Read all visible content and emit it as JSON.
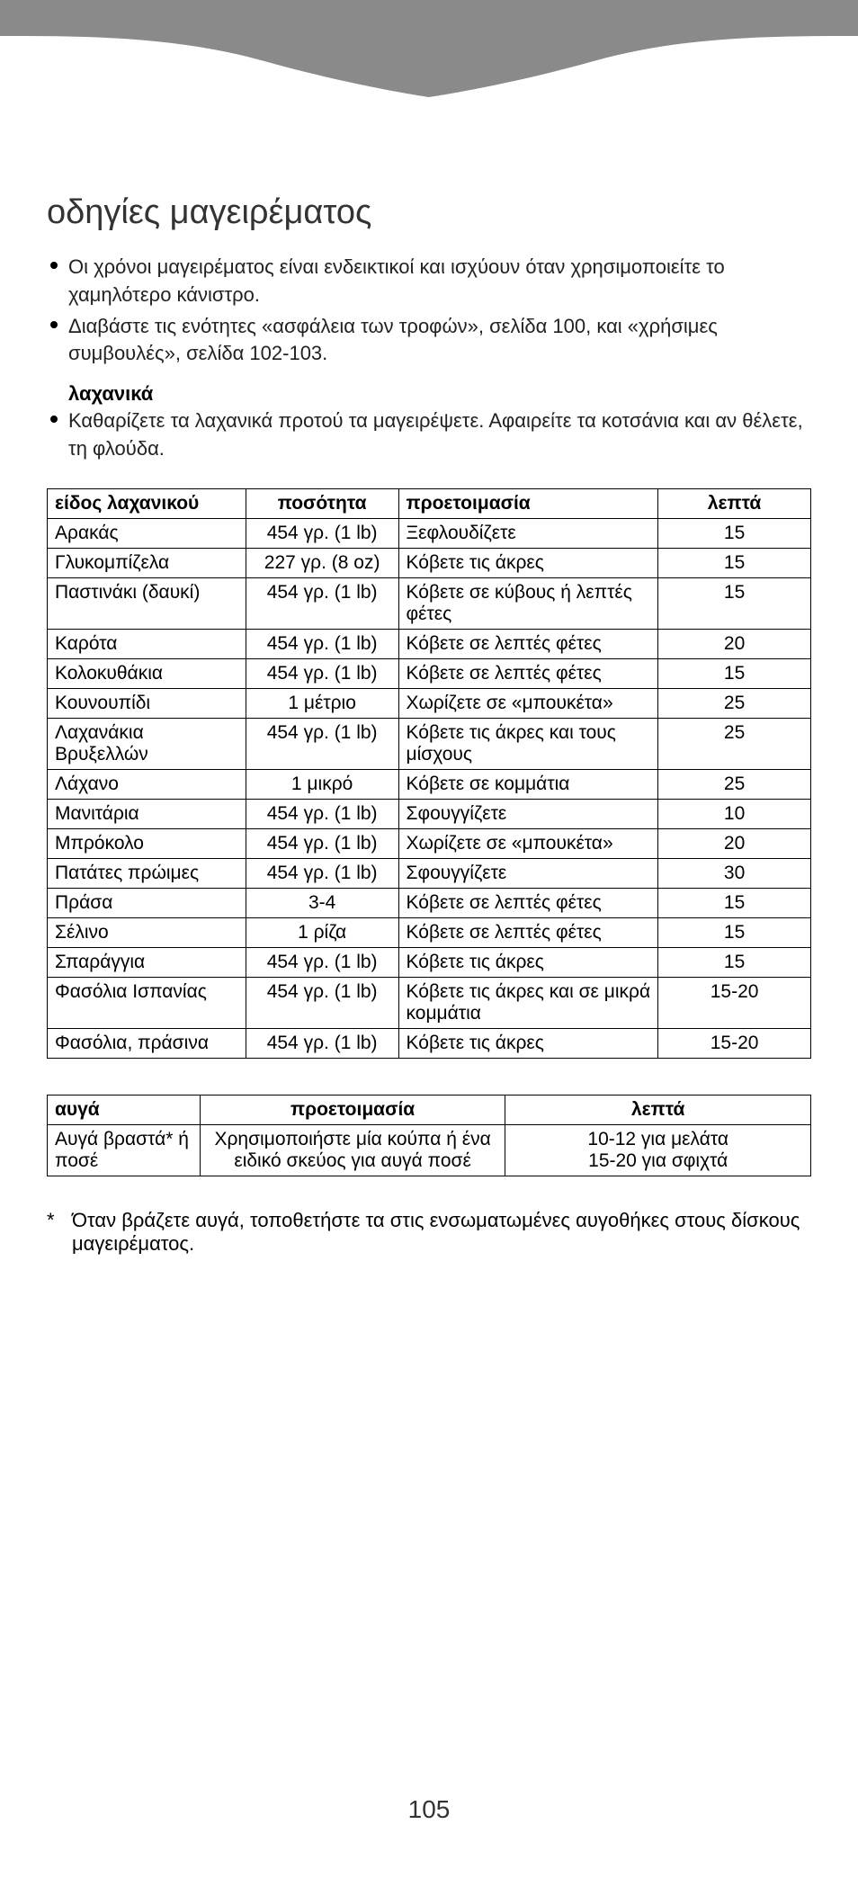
{
  "heading": "οδηγίες μαγειρέματος",
  "bullets": [
    "Οι χρόνοι μαγειρέματος είναι ενδεικτικοί και ισχύουν όταν χρησιμοποιείτε το χαμηλότερο κάνιστρο.",
    "Διαβάστε τις ενότητες «ασφάλεια των τροφών», σελίδα 100, και «χρήσιμες συμβουλές», σελίδα 102-103."
  ],
  "veg_section_label": "λαχανικά",
  "veg_bullet": "Καθαρίζετε τα λαχανικά προτού τα μαγειρέψετε. Αφαιρείτε τα κοτσάνια και αν θέλετε, τη φλούδα.",
  "veg_table": {
    "headers": [
      "είδος λαχανικού",
      "ποσότητα",
      "προετοιμασία",
      "λεπτά"
    ],
    "col_widths": [
      "26%",
      "20%",
      "34%",
      "20%"
    ],
    "rows": [
      [
        "Αρακάς",
        "454 γρ. (1 lb)",
        "Ξεφλουδίζετε",
        "15"
      ],
      [
        "Γλυκομπίζελα",
        "227 γρ. (8 oz)",
        "Κόβετε τις άκρες",
        "15"
      ],
      [
        "Παστινάκι (δαυκί)",
        "454 γρ. (1 lb)",
        "Κόβετε σε κύβους ή λεπτές φέτες",
        "15"
      ],
      [
        "Καρότα",
        "454 γρ. (1 lb)",
        "Κόβετε σε λεπτές φέτες",
        "20"
      ],
      [
        "Κολοκυθάκια",
        "454 γρ. (1 lb)",
        "Κόβετε σε λεπτές φέτες",
        "15"
      ],
      [
        "Κουνουπίδι",
        "1 μέτριο",
        "Χωρίζετε σε «μπουκέτα»",
        "25"
      ],
      [
        "Λαχανάκια Βρυξελλών",
        "454 γρ. (1 lb)",
        "Κόβετε τις άκρες και τους μίσχους",
        "25"
      ],
      [
        "Λάχανο",
        "1 μικρό",
        "Κόβετε σε κομμάτια",
        "25"
      ],
      [
        "Μανιτάρια",
        "454 γρ. (1 lb)",
        "Σφουγγίζετε",
        "10"
      ],
      [
        "Μπρόκολο",
        "454 γρ. (1 lb)",
        "Χωρίζετε σε «μπουκέτα»",
        "20"
      ],
      [
        "Πατάτες πρώιμες",
        "454 γρ. (1 lb)",
        "Σφουγγίζετε",
        "30"
      ],
      [
        "Πράσα",
        "3-4",
        "Κόβετε σε λεπτές φέτες",
        "15"
      ],
      [
        "Σέλινο",
        "1 ρίζα",
        "Κόβετε σε λεπτές φέτες",
        "15"
      ],
      [
        "Σπαράγγια",
        "454 γρ. (1 lb)",
        "Κόβετε τις άκρες",
        "15"
      ],
      [
        "Φασόλια Ισπανίας",
        "454 γρ. (1 lb)",
        "Κόβετε τις άκρες και σε μικρά κομμάτια",
        "15-20"
      ],
      [
        "Φασόλια, πράσινα",
        "454 γρ. (1 lb)",
        "Κόβετε τις άκρες",
        "15-20"
      ]
    ]
  },
  "egg_table": {
    "headers": [
      "αυγά",
      "προετοιμασία",
      "λεπτά"
    ],
    "rows": [
      [
        "Αυγά βραστά* ή ποσέ",
        "Χρησιμοποιήστε μία κούπα ή ένα ειδικό σκεύος για αυγά ποσέ",
        "10-12 για μελάτα\n15-20 για σφιχτά"
      ]
    ]
  },
  "footnote_star": "*",
  "footnote": "Όταν βράζετε αυγά, τοποθετήστε τα στις ενσωματωμένες αυγοθήκες στους δίσκους μαγειρέματος.",
  "page_number": "105",
  "colors": {
    "top_bar": "#8a8a8a",
    "text": "#222222",
    "border": "#000000",
    "bg": "#ffffff"
  }
}
